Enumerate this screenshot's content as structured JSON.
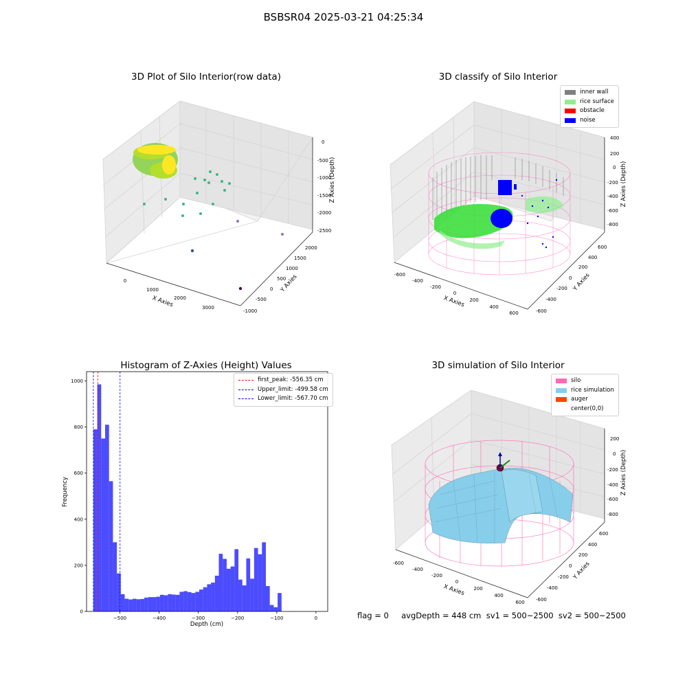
{
  "suptitle": "BSBSR04 2025-03-21 04:25:34",
  "panels": {
    "raw": {
      "title": "3D Plot of Silo Interior(row data)",
      "xlabel": "X Axies",
      "ylabel": "Y Axies",
      "zlabel": "Z Axies (Depth)",
      "xticks": [
        "0",
        "1000",
        "2000",
        "3000"
      ],
      "yticks": [
        "-1000",
        "-500",
        "0",
        "500",
        "1000",
        "1500",
        "2000"
      ],
      "zticks": [
        "0",
        "-500",
        "-1000",
        "-1500",
        "-2000",
        "-2500"
      ]
    },
    "classify": {
      "title": "3D classify of Silo Interior",
      "xlabel": "X Axies",
      "ylabel": "Y Axies",
      "zlabel": "Z Axies (Depth)",
      "xticks": [
        "-600",
        "-400",
        "-200",
        "0",
        "200",
        "400",
        "600"
      ],
      "yticks": [
        "-600",
        "-400",
        "-200",
        "0",
        "200",
        "400",
        "600"
      ],
      "zticks": [
        "400",
        "200",
        "0",
        "-200",
        "-400",
        "-600",
        "-800"
      ],
      "legend": [
        {
          "label": "inner wall",
          "color": "#808080"
        },
        {
          "label": "rice surface",
          "color": "#90ee90"
        },
        {
          "label": "obstacle",
          "color": "#ff0000"
        },
        {
          "label": "noise",
          "color": "#0000ff"
        }
      ]
    },
    "simulation": {
      "title": "3D simulation of Silo Interior",
      "xlabel": "X Axies",
      "ylabel": "Y Axies",
      "zlabel": "Z Axies (Depth)",
      "xticks": [
        "-600",
        "-400",
        "-200",
        "0",
        "200",
        "400",
        "600"
      ],
      "yticks": [
        "-600",
        "-400",
        "-200",
        "0",
        "200",
        "400",
        "600"
      ],
      "zticks": [
        "200",
        "0",
        "-200",
        "-400",
        "-600",
        "-800"
      ],
      "legend": [
        {
          "label": "silo",
          "color": "#ff69b4"
        },
        {
          "label": "rice simulation",
          "color": "#87ceeb"
        },
        {
          "label": "auger",
          "color": "#ff4500"
        },
        {
          "label": "center(0,0)",
          "color": ""
        }
      ]
    }
  },
  "chart_data": {
    "type": "bar",
    "title": "Histogram of Z-Axies (Height) Values",
    "xlabel": "Depth (cm)",
    "ylabel": "Frequency",
    "xlim": [
      -585,
      30
    ],
    "ylim": [
      0,
      1040
    ],
    "xticks": [
      -500,
      -400,
      -300,
      -200,
      -100,
      0
    ],
    "yticks": [
      0,
      200,
      400,
      600,
      800,
      1000
    ],
    "bar_color": "#0000ff",
    "bins_start": -567.7,
    "bin_width": 10,
    "values": [
      790,
      985,
      750,
      810,
      565,
      300,
      165,
      75,
      55,
      52,
      55,
      53,
      54,
      60,
      62,
      62,
      64,
      72,
      70,
      75,
      73,
      72,
      85,
      88,
      84,
      80,
      85,
      95,
      105,
      118,
      125,
      155,
      250,
      228,
      185,
      195,
      270,
      138,
      113,
      230,
      142,
      275,
      248,
      300,
      110,
      28,
      18,
      80
    ],
    "vlines": [
      {
        "label": "first_peak: -556.35 cm",
        "x": -556.35,
        "color": "#ff0000"
      },
      {
        "label": "Upper_limit: -499.58 cm",
        "x": -499.58,
        "color": "#0000ff"
      },
      {
        "label": "Lower_limit: -567.70 cm",
        "x": -567.7,
        "color": "#0000ff"
      }
    ],
    "grid": false,
    "legend_position": "top-right"
  },
  "footer": "flag = 0     avgDepth = 448 cm  sv1 = 500~2500  sv2 = 500~2500"
}
